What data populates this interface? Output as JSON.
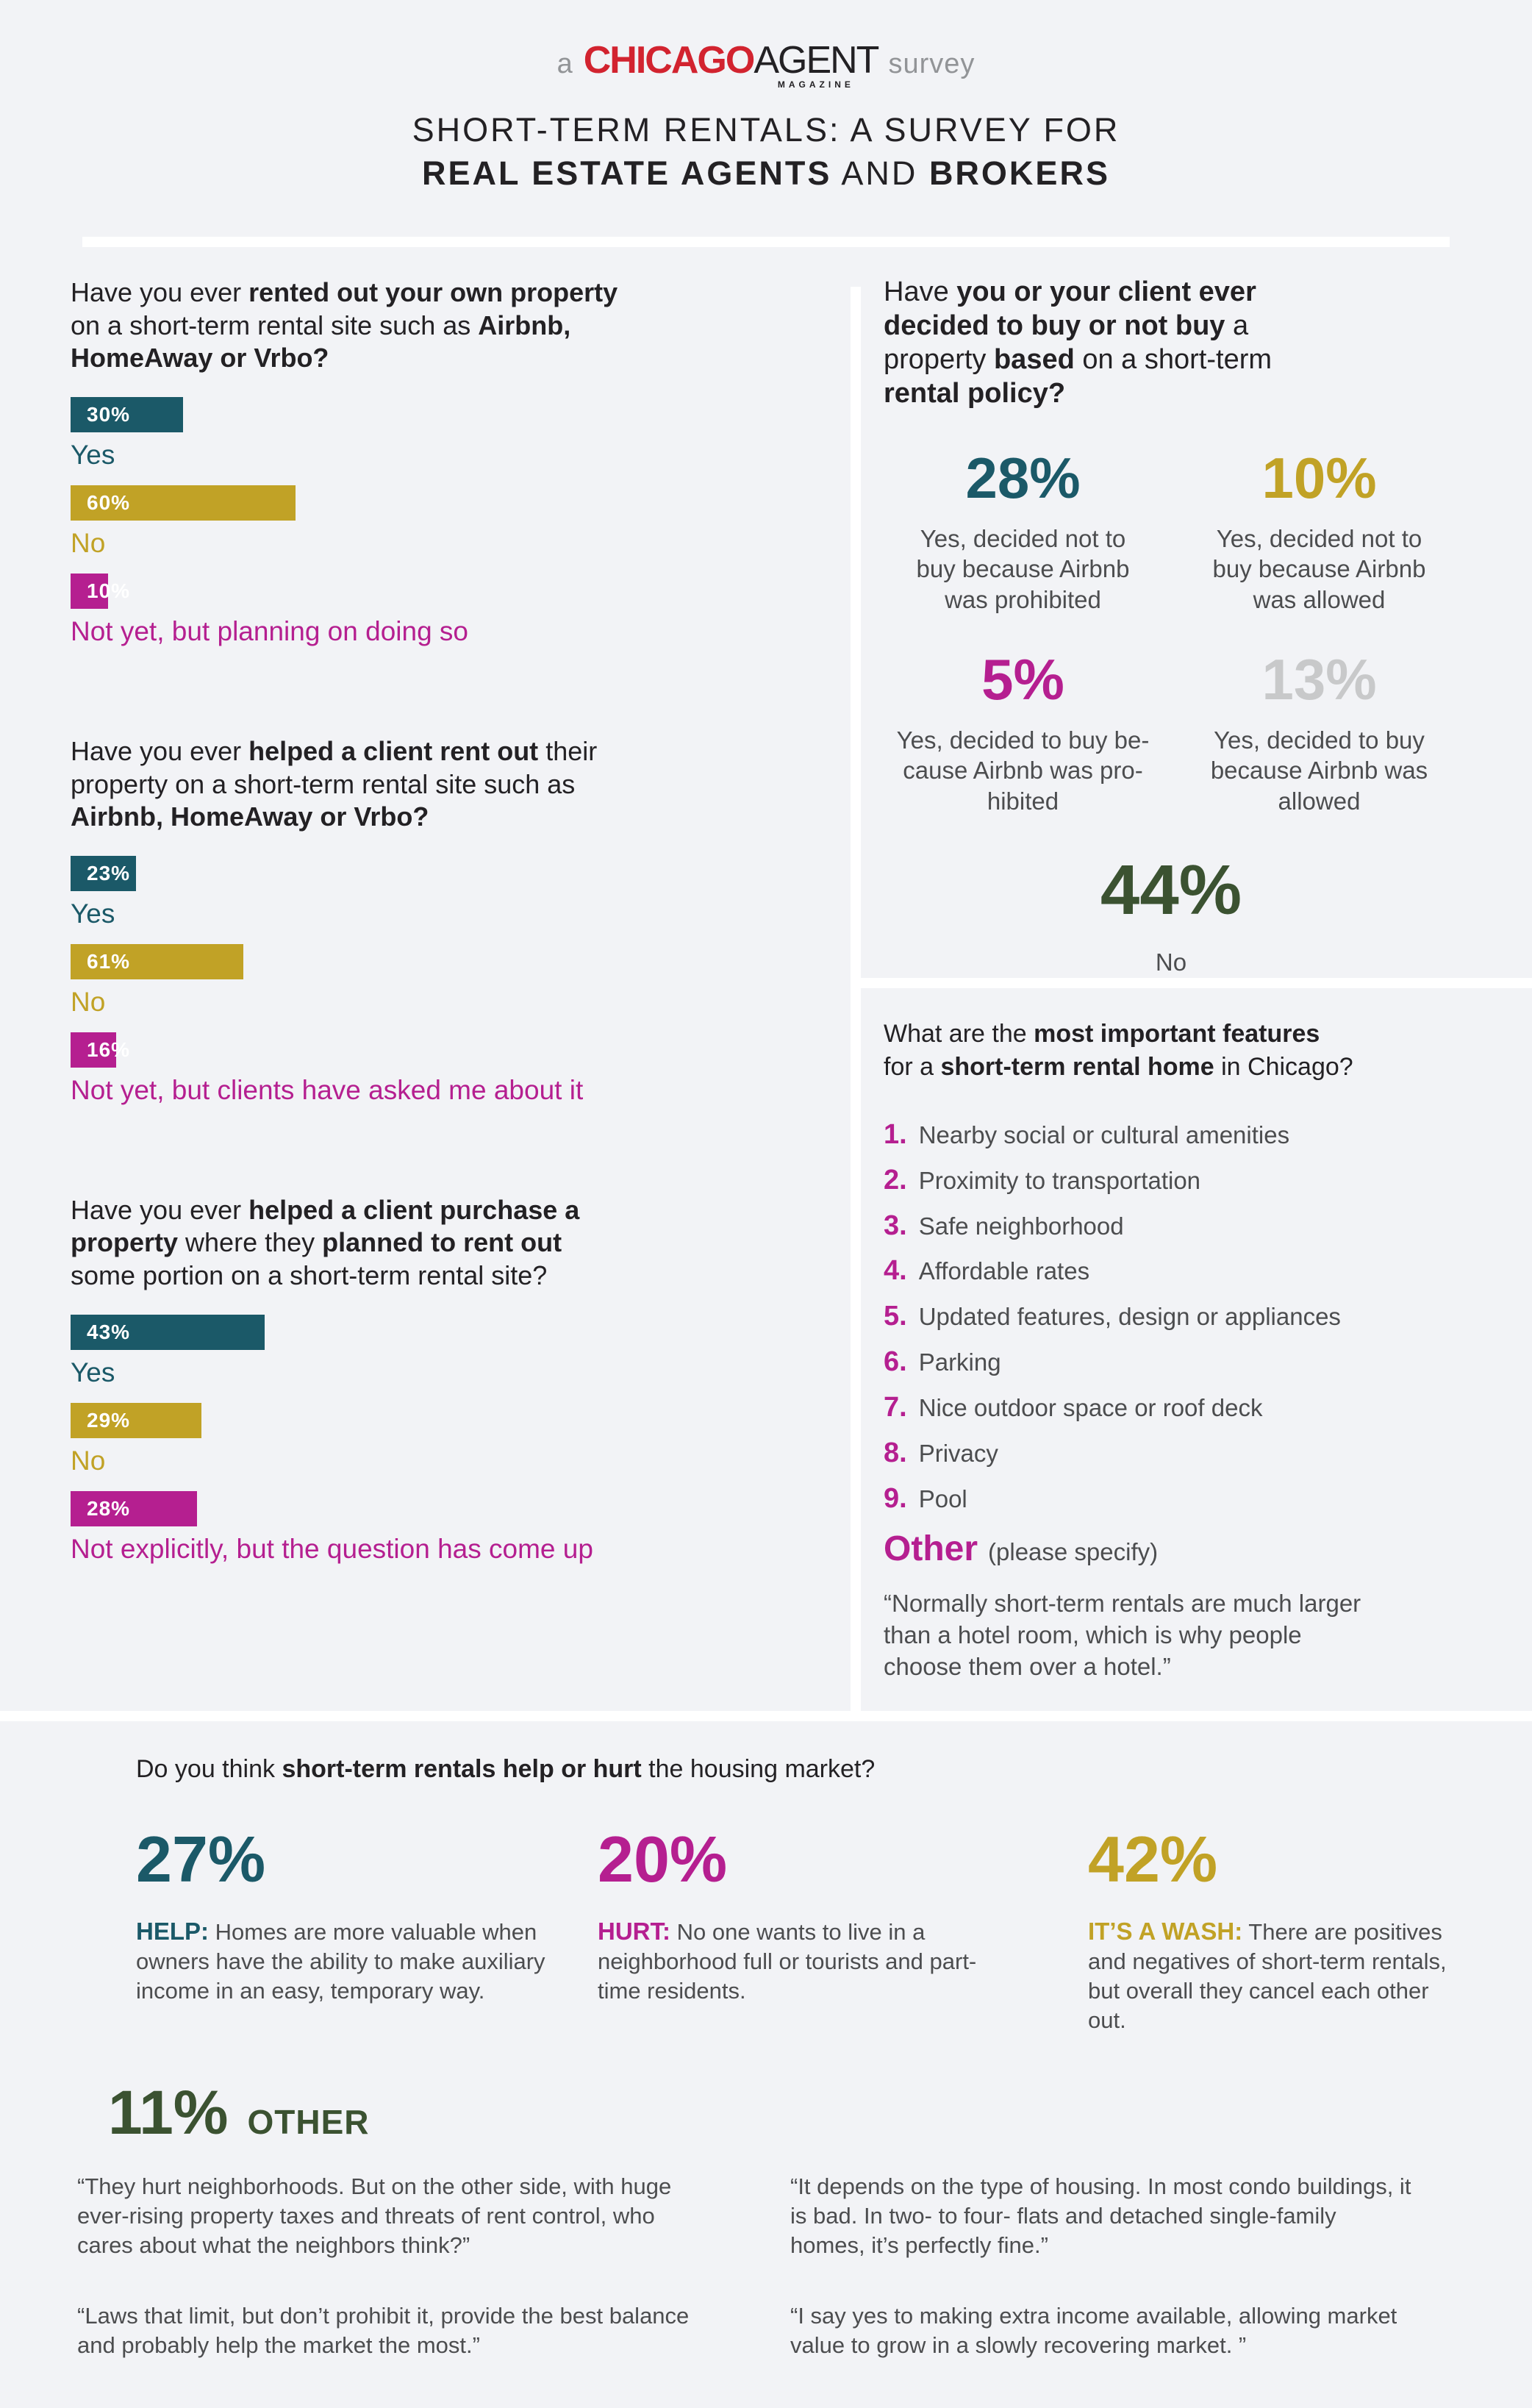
{
  "colors": {
    "background": "#f2f3f6",
    "teal": "#1b5968",
    "gold": "#c1a226",
    "magenta": "#b51f90",
    "silver_gray": "#c8c9ca",
    "dark_green": "#3b5231",
    "logo_red": "#d2232f",
    "logo_gray": "#929497",
    "body_gray": "#4c4d4f"
  },
  "header": {
    "logo": {
      "prefix": "a",
      "brand_red": "CHICAGO",
      "brand_black": "AGENT",
      "brand_sub": "MAGAZINE",
      "suffix": "survey"
    },
    "title_line1": "SHORT-TERM RENTALS: A SURVEY FOR",
    "title_line2": [
      {
        "t": "REAL ESTATE AGENTS",
        "b": true
      },
      {
        "t": " AND ",
        "b": false
      },
      {
        "t": "BROKERS",
        "b": true
      }
    ]
  },
  "left": {
    "q1": {
      "question": [
        {
          "t": "Have you ever ",
          "b": false
        },
        {
          "t": "rented out your own property",
          "b": true
        },
        {
          "br": true
        },
        {
          "t": "on a short-term rental site such as ",
          "b": false
        },
        {
          "t": "Airbnb,",
          "b": true
        },
        {
          "br": true
        },
        {
          "t": "HomeAway or Vrbo?",
          "b": true
        }
      ],
      "bars": [
        {
          "label": "30%",
          "value": 30,
          "category": "Yes",
          "color": "teal"
        },
        {
          "label": "60%",
          "value": 60,
          "category": "No",
          "color": "gold"
        },
        {
          "label": "10%",
          "value": 10,
          "category": "Not yet, but planning on doing so",
          "color": "magenta"
        }
      ]
    },
    "q2": {
      "question": [
        {
          "t": "Have you ever ",
          "b": false
        },
        {
          "t": "helped a client rent out",
          "b": true
        },
        {
          "t": " their",
          "b": false
        },
        {
          "br": true
        },
        {
          "t": "property on a short-term rental site such as",
          "b": false
        },
        {
          "br": true
        },
        {
          "t": "Airbnb, HomeAway or Vrbo?",
          "b": true
        }
      ],
      "bars": [
        {
          "label": "23%",
          "value": 23,
          "category": "Yes",
          "color": "teal"
        },
        {
          "label": "61%",
          "value": 61,
          "category": "No",
          "color": "gold"
        },
        {
          "label": "16%",
          "value": 16,
          "category": "Not yet, but clients have asked me about it",
          "color": "magenta"
        }
      ]
    },
    "q3": {
      "question": [
        {
          "t": "Have you ever ",
          "b": false
        },
        {
          "t": "helped a client purchase a",
          "b": true
        },
        {
          "br": true
        },
        {
          "t": "property",
          "b": true
        },
        {
          "t": " where they ",
          "b": false
        },
        {
          "t": "planned to rent out",
          "b": true
        },
        {
          "br": true
        },
        {
          "t": "some portion on a short-term rental site?",
          "b": false
        }
      ],
      "bars": [
        {
          "label": "43%",
          "value": 43,
          "category": "Yes",
          "color": "teal"
        },
        {
          "label": "29%",
          "value": 29,
          "category": "No",
          "color": "gold"
        },
        {
          "label": "28%",
          "value": 28,
          "category": "Not explicitly, but the question has come up",
          "color": "magenta"
        }
      ]
    }
  },
  "right": {
    "buy_question": [
      {
        "t": "Have ",
        "b": false
      },
      {
        "t": "you or your client ever",
        "b": true
      },
      {
        "br": true
      },
      {
        "t": "decided to buy or not buy",
        "b": true
      },
      {
        "t": " a",
        "b": false
      },
      {
        "br": true
      },
      {
        "t": "property ",
        "b": false
      },
      {
        "t": "based",
        "b": true
      },
      {
        "t": " on a short-term",
        "b": false
      },
      {
        "br": true
      },
      {
        "t": "rental policy?",
        "b": true
      }
    ],
    "stats": [
      {
        "value": "28%",
        "caption": "Yes, decided not to\nbuy because Airbnb\nwas prohibited",
        "color": "teal"
      },
      {
        "value": "10%",
        "caption": "Yes, decided not to\nbuy because Airbnb\nwas allowed",
        "color": "gold"
      },
      {
        "value": "5%",
        "caption": "Yes, decided to buy be-\ncause Airbnb was pro-\nhibited",
        "color": "magenta"
      },
      {
        "value": "13%",
        "caption": "Yes, decided to buy\nbecause Airbnb was\nallowed",
        "color": "silver"
      }
    ],
    "no_stat": {
      "value": "44%",
      "caption": "No",
      "color": "dark_green"
    },
    "features": {
      "question": [
        {
          "t": "What are the ",
          "b": false
        },
        {
          "t": "most important features",
          "b": true
        },
        {
          "br": true
        },
        {
          "t": "for a ",
          "b": false
        },
        {
          "t": "short-term rental home",
          "b": true
        },
        {
          "t": " in Chicago?",
          "b": false
        }
      ],
      "items": [
        {
          "num": "1.",
          "text": "Nearby social or cultural amenities"
        },
        {
          "num": "2.",
          "text": "Proximity to transportation"
        },
        {
          "num": "3.",
          "text": "Safe neighborhood"
        },
        {
          "num": "4.",
          "text": "Affordable rates"
        },
        {
          "num": "5.",
          "text": "Updated features, design or appliances"
        },
        {
          "num": "6.",
          "text": "Parking"
        },
        {
          "num": "7.",
          "text": "Nice outdoor space or roof deck"
        },
        {
          "num": "8.",
          "text": "Privacy"
        },
        {
          "num": "9.",
          "text": "Pool"
        }
      ],
      "other_label": "Other",
      "other_note": "(please specify)",
      "quote": "“Normally short-term rentals are much larger than a hotel room, which is why people choose them over a hotel.”"
    }
  },
  "bottom": {
    "question": [
      {
        "t": "Do you think ",
        "b": false
      },
      {
        "t": "short-term rentals help or hurt",
        "b": true
      },
      {
        "t": " the housing market?",
        "b": false
      }
    ],
    "stats": [
      {
        "value": "27%",
        "label": "HELP:",
        "text": " Homes are more valuable when owners have the ability to make auxiliary income in an easy, temporary way.",
        "color": "teal"
      },
      {
        "value": "20%",
        "label": "HURT:",
        "text": " No one wants to live in a neighborhood full or tourists and part-time residents.",
        "color": "magenta"
      },
      {
        "value": "42%",
        "label": "IT’S A WASH:",
        "text": " There are positives and negatives of short-term rentals, but overall they cancel each other out.",
        "color": "gold"
      }
    ],
    "other": {
      "value": "11%",
      "label": "OTHER",
      "color": "dark_green"
    },
    "quotes": [
      "“They hurt neighborhoods. But on the other side, with huge ever-rising property taxes and threats of rent control, who cares about what the neighbors think?”",
      "“Laws that limit, but don’t prohibit it, provide the best balance and probably help the market the most.”",
      "“It depends on the type of housing. In most condo buildings, it is bad. In two- to four- flats and detached single-family homes, it’s perfectly fine.”",
      "“I say yes to making extra income available, allowing market value to grow in a slowly recovering market. ”"
    ]
  },
  "chart_data": [
    {
      "type": "bar",
      "orientation": "horizontal",
      "unit": "percent",
      "title": "Have you ever rented out your own property on a short-term rental site such as Airbnb, HomeAway or Vrbo?",
      "categories": [
        "Yes",
        "No",
        "Not yet, but planning on doing so"
      ],
      "values": [
        30,
        60,
        10
      ]
    },
    {
      "type": "bar",
      "orientation": "horizontal",
      "unit": "percent",
      "title": "Have you ever helped a client rent out their property on a short-term rental site such as Airbnb, HomeAway or Vrbo?",
      "categories": [
        "Yes",
        "No",
        "Not yet, but clients have asked me about it"
      ],
      "values": [
        23,
        61,
        16
      ]
    },
    {
      "type": "bar",
      "orientation": "horizontal",
      "unit": "percent",
      "title": "Have you ever helped a client purchase a property where they planned to rent out some portion on a short-term rental site?",
      "categories": [
        "Yes",
        "No",
        "Not explicitly, but the question has come up"
      ],
      "values": [
        43,
        29,
        28
      ]
    },
    {
      "type": "stat",
      "unit": "percent",
      "title": "Have you or your client ever decided to buy or not buy a property based on a short-term rental policy?",
      "categories": [
        "Yes, decided not to buy because Airbnb was prohibited",
        "Yes, decided not to buy because Airbnb was allowed",
        "Yes, decided to buy because Airbnb was prohibited",
        "Yes, decided to buy because Airbnb was allowed",
        "No"
      ],
      "values": [
        28,
        10,
        5,
        13,
        44
      ]
    },
    {
      "type": "table",
      "title": "What are the most important features for a short-term rental home in Chicago?",
      "items": [
        "Nearby social or cultural amenities",
        "Proximity to transportation",
        "Safe neighborhood",
        "Affordable rates",
        "Updated features, design or appliances",
        "Parking",
        "Nice outdoor space or roof deck",
        "Privacy",
        "Pool"
      ]
    },
    {
      "type": "stat",
      "unit": "percent",
      "title": "Do you think short-term rentals help or hurt the housing market?",
      "categories": [
        "Help",
        "Hurt",
        "It's a wash",
        "Other"
      ],
      "values": [
        27,
        20,
        42,
        11
      ]
    }
  ]
}
